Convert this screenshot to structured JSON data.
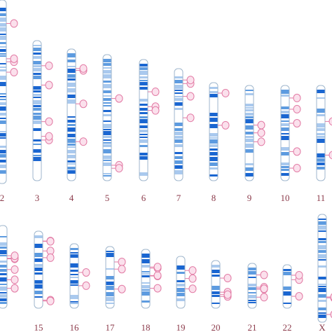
{
  "chromosomes": [
    {
      "label": "2",
      "row": 1
    },
    {
      "label": "3",
      "row": 1
    },
    {
      "label": "4",
      "row": 1
    },
    {
      "label": "5",
      "row": 1
    },
    {
      "label": "6",
      "row": 1
    },
    {
      "label": "7",
      "row": 1
    },
    {
      "label": "8",
      "row": 1
    },
    {
      "label": "9",
      "row": 1
    },
    {
      "label": "10",
      "row": 1
    },
    {
      "label": "11",
      "row": 1
    },
    {
      "label": "",
      "row": 2
    },
    {
      "label": "15",
      "row": 2
    },
    {
      "label": "16",
      "row": 2
    },
    {
      "label": "17",
      "row": 2
    },
    {
      "label": "18",
      "row": 2
    },
    {
      "label": "19",
      "row": 2
    },
    {
      "label": "20",
      "row": 2
    },
    {
      "label": "21",
      "row": 2
    },
    {
      "label": "22",
      "row": 2
    },
    {
      "label": "X",
      "row": 2
    }
  ],
  "colors": {
    "band_dark": "#1a66d1",
    "band_mid": "#5d9be0",
    "band_light": "#a9c9ee",
    "marker": "#e27aa4",
    "label": "#8b3a4a"
  }
}
